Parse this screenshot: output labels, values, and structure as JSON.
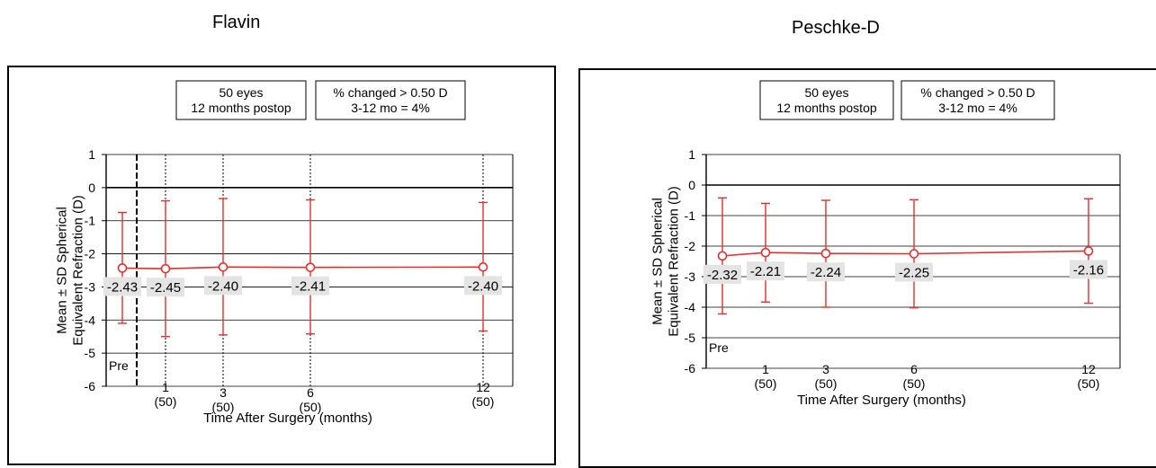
{
  "chart_data": [
    {
      "type": "line",
      "title": "Flavin",
      "ylabel": "Mean ± SD Spherical Equivalent Refraction (D)",
      "xlabel": "Time After Surgery (months)",
      "ylim": [
        -6,
        1
      ],
      "yticks": [
        "1",
        "0",
        "-1",
        "-2",
        "-3",
        "-4",
        "-5",
        "-6"
      ],
      "x_ticks": [
        {
          "label": "Pre",
          "n": ""
        },
        {
          "label": "1",
          "n": "(50)"
        },
        {
          "label": "3",
          "n": "(50)"
        },
        {
          "label": "6",
          "n": "(50)"
        },
        {
          "label": "12",
          "n": "(50)"
        }
      ],
      "x": [
        0,
        1,
        3,
        6,
        12
      ],
      "values": [
        -2.43,
        -2.45,
        -2.4,
        -2.41,
        -2.4
      ],
      "value_labels": [
        "-2.43",
        "-2.45",
        "-2.40",
        "-2.41",
        "-2.40"
      ],
      "error_low": [
        -4.1,
        -4.5,
        -4.45,
        -4.42,
        -4.33
      ],
      "error_high": [
        -0.75,
        -0.4,
        -0.33,
        -0.37,
        -0.45
      ],
      "grid": true,
      "vertical_dashed_lines": true,
      "annotations": [
        "50 eyes",
        "12 months postop",
        "% changed > 0.50 D",
        "3-12 mo = 4%"
      ],
      "colors": {
        "series": "#e03030",
        "axis": "#000000",
        "grid": "#000000",
        "label_bg": "#e4e4e4"
      }
    },
    {
      "type": "line",
      "title": "Peschke-D",
      "ylabel": "Mean ± SD Spherical Equivalent Refraction (D)",
      "xlabel": "Time After Surgery (months)",
      "ylim": [
        -6,
        1
      ],
      "yticks": [
        "1",
        "0",
        "-1",
        "-2",
        "-3",
        "-4",
        "-5",
        "-6"
      ],
      "x_ticks": [
        {
          "label": "Pre",
          "n": ""
        },
        {
          "label": "1",
          "n": "(50)"
        },
        {
          "label": "3",
          "n": "(50)"
        },
        {
          "label": "6",
          "n": "(50)"
        },
        {
          "label": "12",
          "n": "(50)"
        }
      ],
      "x": [
        0,
        1,
        3,
        6,
        12
      ],
      "values": [
        -2.32,
        -2.21,
        -2.24,
        -2.25,
        -2.16
      ],
      "value_labels": [
        "-2.32",
        "-2.21",
        "-2.24",
        "-2.25",
        "-2.16"
      ],
      "error_low": [
        -4.22,
        -3.83,
        -4.0,
        -4.02,
        -3.87
      ],
      "error_high": [
        -0.42,
        -0.6,
        -0.5,
        -0.48,
        -0.45
      ],
      "grid": true,
      "vertical_dashed_lines": false,
      "annotations": [
        "50 eyes",
        "12 months postop",
        "% changed > 0.50 D",
        "3-12 mo = 4%"
      ],
      "colors": {
        "series": "#e03030",
        "axis": "#000000",
        "grid": "#000000",
        "label_bg": "#e4e4e4"
      }
    }
  ]
}
